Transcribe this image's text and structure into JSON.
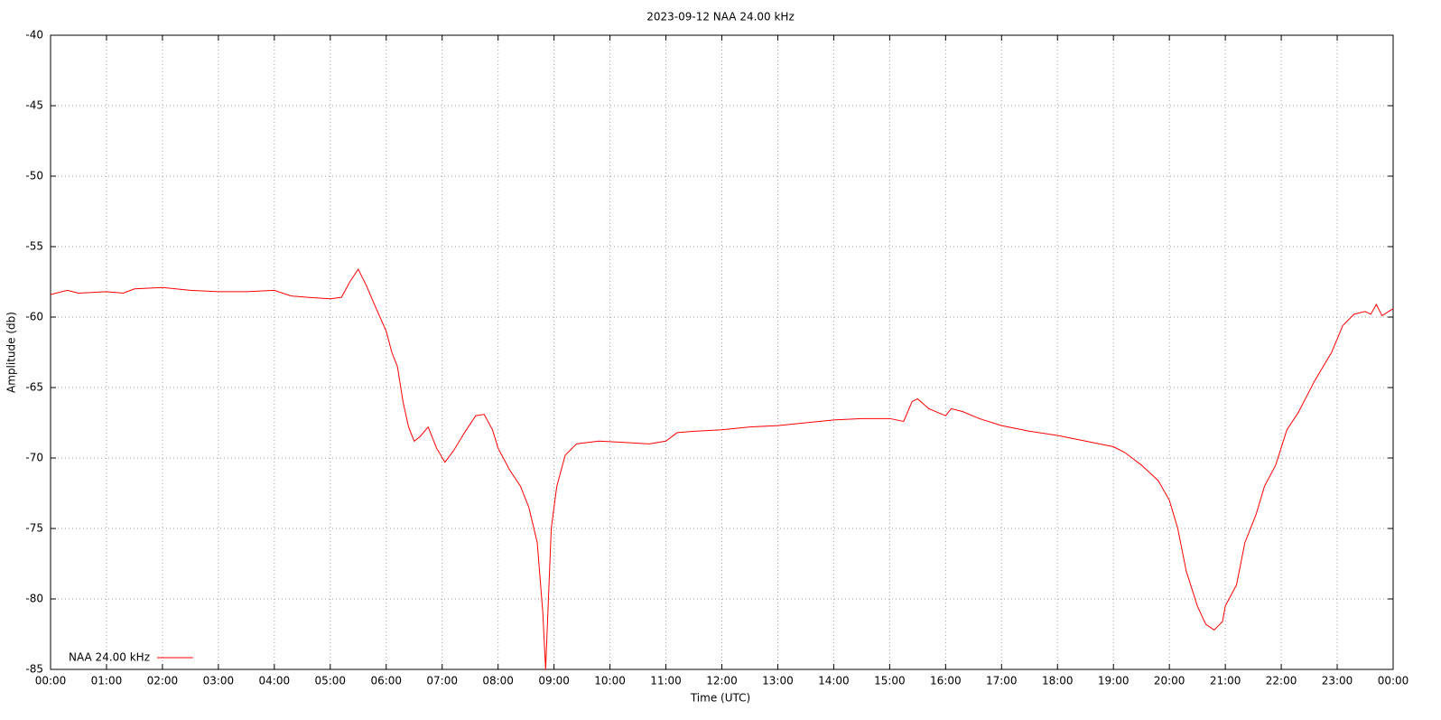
{
  "chart_data": {
    "type": "line",
    "title": "2023-09-12 NAA 24.00 kHz",
    "x_label": "Time (UTC)",
    "y_label": "Amplitude (db)",
    "xlim": [
      0,
      24
    ],
    "ylim": [
      -85,
      -40
    ],
    "xticks": [
      {
        "value": 0,
        "label": "00:00"
      },
      {
        "value": 1,
        "label": "01:00"
      },
      {
        "value": 2,
        "label": "02:00"
      },
      {
        "value": 3,
        "label": "03:00"
      },
      {
        "value": 4,
        "label": "04:00"
      },
      {
        "value": 5,
        "label": "05:00"
      },
      {
        "value": 6,
        "label": "06:00"
      },
      {
        "value": 7,
        "label": "07:00"
      },
      {
        "value": 8,
        "label": "08:00"
      },
      {
        "value": 9,
        "label": "09:00"
      },
      {
        "value": 10,
        "label": "10:00"
      },
      {
        "value": 11,
        "label": "11:00"
      },
      {
        "value": 12,
        "label": "12:00"
      },
      {
        "value": 13,
        "label": "13:00"
      },
      {
        "value": 14,
        "label": "14:00"
      },
      {
        "value": 15,
        "label": "15:00"
      },
      {
        "value": 16,
        "label": "16:00"
      },
      {
        "value": 17,
        "label": "17:00"
      },
      {
        "value": 18,
        "label": "18:00"
      },
      {
        "value": 19,
        "label": "19:00"
      },
      {
        "value": 20,
        "label": "20:00"
      },
      {
        "value": 21,
        "label": "21:00"
      },
      {
        "value": 22,
        "label": "22:00"
      },
      {
        "value": 23,
        "label": "23:00"
      },
      {
        "value": 24,
        "label": "00:00"
      }
    ],
    "yticks": [
      -40,
      -45,
      -50,
      -55,
      -60,
      -65,
      -70,
      -75,
      -80,
      -85
    ],
    "grid": true,
    "legend": "bottom-left",
    "x": [
      0,
      0.3,
      0.5,
      1.0,
      1.3,
      1.5,
      2.0,
      2.5,
      3.0,
      3.5,
      4.0,
      4.3,
      4.6,
      5.0,
      5.2,
      5.35,
      5.5,
      5.65,
      5.8,
      6.0,
      6.1,
      6.2,
      6.3,
      6.4,
      6.5,
      6.6,
      6.75,
      6.9,
      7.05,
      7.2,
      7.4,
      7.6,
      7.75,
      7.9,
      8.0,
      8.2,
      8.4,
      8.55,
      8.7,
      8.8,
      8.85,
      8.9,
      8.95,
      9.05,
      9.2,
      9.4,
      9.8,
      10.3,
      10.7,
      11.0,
      11.2,
      11.5,
      12.0,
      12.5,
      13.0,
      13.5,
      14.0,
      14.5,
      15.0,
      15.25,
      15.4,
      15.5,
      15.7,
      16.0,
      16.1,
      16.3,
      16.6,
      17.0,
      17.5,
      18.0,
      18.5,
      19.0,
      19.2,
      19.5,
      19.8,
      20.0,
      20.15,
      20.3,
      20.5,
      20.65,
      20.8,
      20.95,
      21.0,
      21.2,
      21.35,
      21.55,
      21.7,
      21.9,
      22.1,
      22.3,
      22.6,
      22.9,
      23.1,
      23.3,
      23.5,
      23.6,
      23.7,
      23.8,
      24.0
    ],
    "series": [
      {
        "name": "NAA 24.00 kHz",
        "color": "#ff0000",
        "values": [
          -58.4,
          -58.1,
          -58.3,
          -58.2,
          -58.3,
          -58.0,
          -57.9,
          -58.1,
          -58.2,
          -58.2,
          -58.1,
          -58.5,
          -58.6,
          -58.7,
          -58.6,
          -57.5,
          -56.6,
          -57.8,
          -59.2,
          -61.0,
          -62.5,
          -63.5,
          -66.0,
          -67.8,
          -68.8,
          -68.5,
          -67.8,
          -69.3,
          -70.3,
          -69.5,
          -68.2,
          -67.0,
          -66.9,
          -68.0,
          -69.3,
          -70.8,
          -72.0,
          -73.5,
          -76.0,
          -81.0,
          -85.0,
          -80.0,
          -75.0,
          -72.0,
          -69.8,
          -69.0,
          -68.8,
          -68.9,
          -69.0,
          -68.8,
          -68.2,
          -68.1,
          -68.0,
          -67.8,
          -67.7,
          -67.5,
          -67.3,
          -67.2,
          -67.2,
          -67.4,
          -66.0,
          -65.8,
          -66.5,
          -67.0,
          -66.5,
          -66.7,
          -67.2,
          -67.7,
          -68.1,
          -68.4,
          -68.8,
          -69.2,
          -69.6,
          -70.5,
          -71.6,
          -73.0,
          -75.0,
          -78.0,
          -80.5,
          -81.8,
          -82.2,
          -81.6,
          -80.5,
          -79.0,
          -76.0,
          -74.0,
          -72.0,
          -70.5,
          -68.0,
          -66.8,
          -64.5,
          -62.5,
          -60.6,
          -59.8,
          -59.6,
          -59.8,
          -59.1,
          -59.9,
          -59.4
        ]
      }
    ]
  }
}
